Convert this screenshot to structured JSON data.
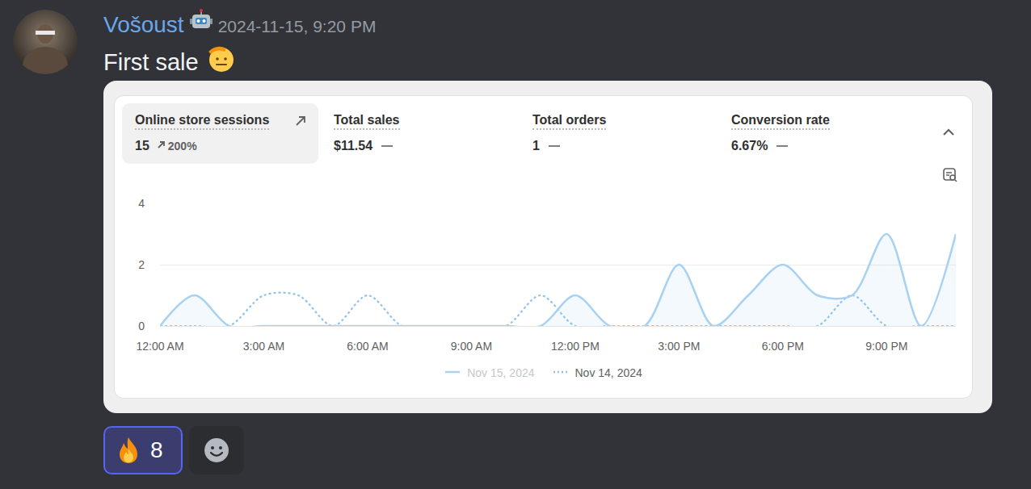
{
  "message": {
    "author": "Vošoust",
    "timestamp": "2024-11-15, 9:20 PM",
    "text": "First sale"
  },
  "metrics": [
    {
      "label": "Online store sessions",
      "value": "15",
      "change": "200%"
    },
    {
      "label": "Total sales",
      "value": "$11.54"
    },
    {
      "label": "Total orders",
      "value": "1"
    },
    {
      "label": "Conversion rate",
      "value": "6.67%"
    }
  ],
  "reactions": [
    {
      "count": "8"
    }
  ],
  "chart_data": {
    "type": "line",
    "categories": [
      "12:00 AM",
      null,
      null,
      "3:00 AM",
      null,
      null,
      "6:00 AM",
      null,
      null,
      "9:00 AM",
      null,
      null,
      "12:00 PM",
      null,
      null,
      "3:00 PM",
      null,
      null,
      "6:00 PM",
      null,
      null,
      "9:00 PM",
      null,
      null
    ],
    "series": [
      {
        "name": "Nov 15, 2024",
        "color": "#a8d1f2",
        "line_style": "solid",
        "values": [
          0,
          1,
          0,
          0,
          0,
          0,
          0,
          0,
          0,
          0,
          0,
          0,
          1,
          0,
          0,
          2,
          0,
          1,
          2,
          1,
          1,
          3,
          0,
          3
        ]
      },
      {
        "name": "Nov 14, 2024",
        "color": "#94c2e8",
        "line_style": "dotted",
        "values": [
          0,
          0,
          0,
          1,
          1,
          0,
          1,
          0,
          0,
          0,
          0,
          1,
          0,
          0,
          0,
          0,
          0,
          0,
          0,
          0,
          1,
          0,
          0,
          0
        ]
      }
    ],
    "ylim": [
      0,
      4
    ],
    "yticks": [
      0,
      2,
      4
    ],
    "grid": true,
    "legend": "bottom"
  }
}
